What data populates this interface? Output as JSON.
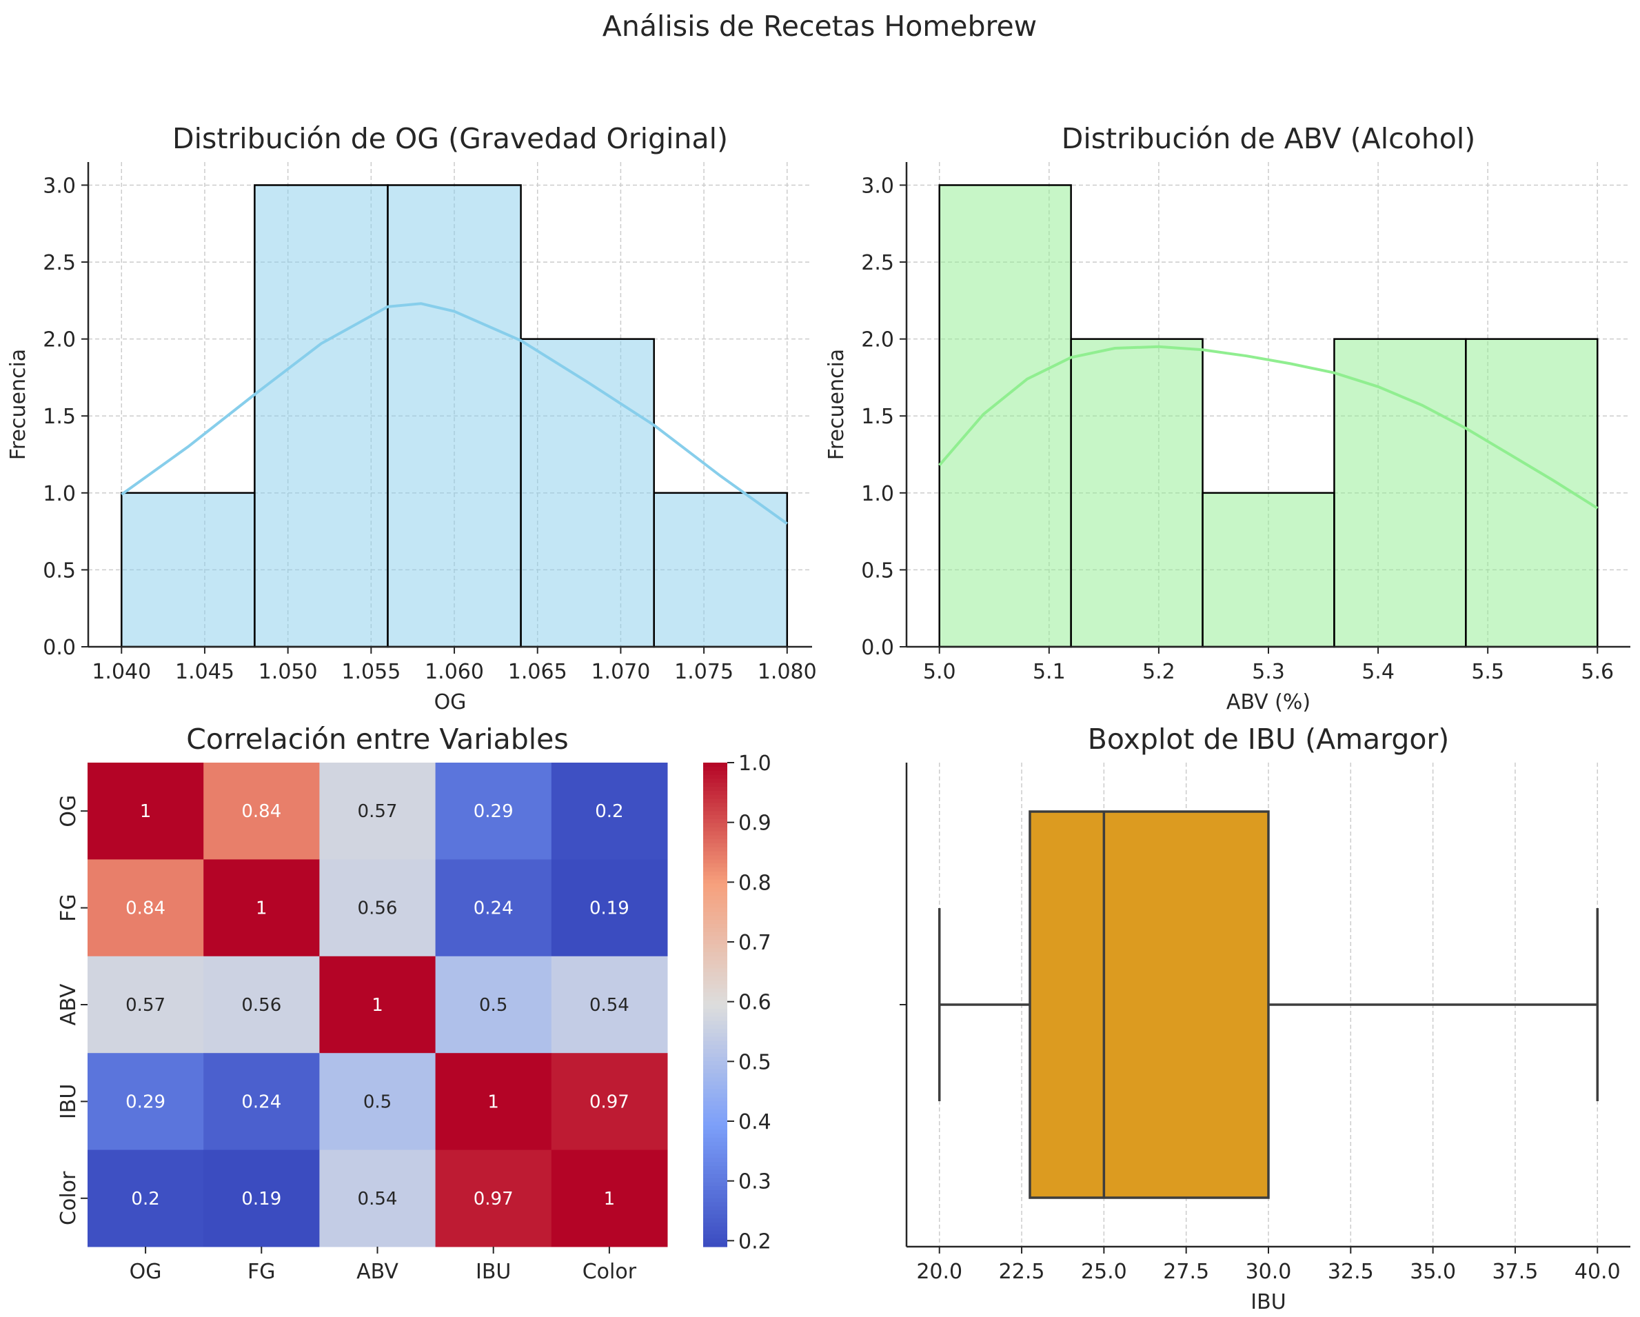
{
  "figure": {
    "title": "Análisis de Recetas Homebrew"
  },
  "chart_data": [
    {
      "type": "histogram",
      "title": "Distribución de OG (Gravedad Original)",
      "xlabel": "OG",
      "ylabel": "Frecuencia",
      "bins": [
        {
          "start": 1.04,
          "end": 1.048,
          "count": 1
        },
        {
          "start": 1.048,
          "end": 1.056,
          "count": 3
        },
        {
          "start": 1.056,
          "end": 1.064,
          "count": 3
        },
        {
          "start": 1.064,
          "end": 1.072,
          "count": 2
        },
        {
          "start": 1.072,
          "end": 1.08,
          "count": 1
        }
      ],
      "kde": [
        [
          1.04,
          0.99
        ],
        [
          1.044,
          1.3
        ],
        [
          1.048,
          1.64
        ],
        [
          1.052,
          1.97
        ],
        [
          1.056,
          2.21
        ],
        [
          1.058,
          2.23
        ],
        [
          1.06,
          2.18
        ],
        [
          1.064,
          1.99
        ],
        [
          1.068,
          1.72
        ],
        [
          1.072,
          1.44
        ],
        [
          1.076,
          1.11
        ],
        [
          1.08,
          0.8
        ]
      ],
      "xlim": [
        1.038,
        1.0815
      ],
      "ylim": [
        0,
        3.15
      ],
      "xticks": [
        "1.040",
        "1.045",
        "1.050",
        "1.055",
        "1.060",
        "1.065",
        "1.070",
        "1.075",
        "1.080"
      ],
      "yticks": [
        "0.0",
        "0.5",
        "1.0",
        "1.5",
        "2.0",
        "2.5",
        "3.0"
      ],
      "grid": true,
      "bar_color": "#87ceeb",
      "bar_opacity": 0.5,
      "kde_color": "#87ceeb"
    },
    {
      "type": "histogram",
      "title": "Distribución de ABV (Alcohol)",
      "xlabel": "ABV (%)",
      "ylabel": "Frecuencia",
      "bins": [
        {
          "start": 5.0,
          "end": 5.12,
          "count": 3
        },
        {
          "start": 5.12,
          "end": 5.24,
          "count": 2
        },
        {
          "start": 5.24,
          "end": 5.36,
          "count": 1
        },
        {
          "start": 5.36,
          "end": 5.48,
          "count": 2
        },
        {
          "start": 5.48,
          "end": 5.6,
          "count": 2
        }
      ],
      "kde": [
        [
          5.0,
          1.18
        ],
        [
          5.04,
          1.51
        ],
        [
          5.08,
          1.74
        ],
        [
          5.12,
          1.88
        ],
        [
          5.16,
          1.94
        ],
        [
          5.2,
          1.95
        ],
        [
          5.24,
          1.93
        ],
        [
          5.28,
          1.89
        ],
        [
          5.32,
          1.84
        ],
        [
          5.36,
          1.78
        ],
        [
          5.4,
          1.69
        ],
        [
          5.44,
          1.57
        ],
        [
          5.48,
          1.42
        ],
        [
          5.52,
          1.25
        ],
        [
          5.56,
          1.08
        ],
        [
          5.6,
          0.9
        ]
      ],
      "xlim": [
        4.97,
        5.63
      ],
      "ylim": [
        0,
        3.15
      ],
      "xticks": [
        "5.0",
        "5.1",
        "5.2",
        "5.3",
        "5.4",
        "5.5",
        "5.6"
      ],
      "yticks": [
        "0.0",
        "0.5",
        "1.0",
        "1.5",
        "2.0",
        "2.5",
        "3.0"
      ],
      "grid": true,
      "bar_color": "#90ee90",
      "bar_opacity": 0.5,
      "kde_color": "#90ee90"
    },
    {
      "type": "heatmap",
      "title": "Correlación entre Variables",
      "labels": [
        "OG",
        "FG",
        "ABV",
        "IBU",
        "Color"
      ],
      "matrix": [
        [
          "1",
          "0.84",
          "0.57",
          "0.29",
          "0.2"
        ],
        [
          "0.84",
          "1",
          "0.56",
          "0.24",
          "0.19"
        ],
        [
          "0.57",
          "0.56",
          "1",
          "0.5",
          "0.54"
        ],
        [
          "0.29",
          "0.24",
          "0.5",
          "1",
          "0.97"
        ],
        [
          "0.2",
          "0.19",
          "0.54",
          "0.97",
          "1"
        ]
      ],
      "colormap": "coolwarm",
      "colorbar_range": [
        0.19,
        1.0
      ],
      "colorbar_ticks": [
        "0.2",
        "0.3",
        "0.4",
        "0.5",
        "0.6",
        "0.7",
        "0.8",
        "0.9",
        "1.0"
      ]
    },
    {
      "type": "boxplot",
      "title": "Boxplot de IBU (Amargor)",
      "xlabel": "IBU",
      "min": 20.0,
      "q1": 22.75,
      "median": 25.0,
      "q3": 30.0,
      "max": 40.0,
      "xlim": [
        19.0,
        41.0
      ],
      "xticks": [
        "20.0",
        "22.5",
        "25.0",
        "27.5",
        "30.0",
        "32.5",
        "35.0",
        "37.5",
        "40.0"
      ],
      "grid": true,
      "box_color": "#dc9b20"
    }
  ]
}
